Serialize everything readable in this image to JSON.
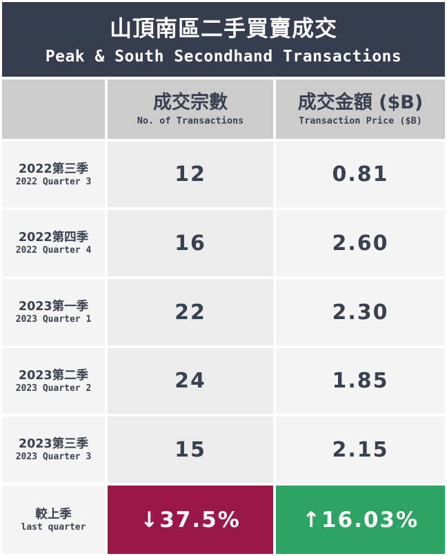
{
  "title": {
    "zh": "山頂南區二手買賣成交",
    "en": "Peak & South Secondhand Transactions"
  },
  "columns": [
    {
      "zh": "成交宗數",
      "en": "No. of Transactions"
    },
    {
      "zh": "成交金額 ($B)",
      "en": "Transaction Price ($B)"
    }
  ],
  "rows": [
    {
      "zh": "2022第三季",
      "en": "2022 Quarter 3",
      "transactions": "12",
      "price": "0.81"
    },
    {
      "zh": "2022第四季",
      "en": "2022 Quarter 4",
      "transactions": "16",
      "price": "2.60"
    },
    {
      "zh": "2023第一季",
      "en": "2023 Quarter 1",
      "transactions": "22",
      "price": "2.30"
    },
    {
      "zh": "2023第二季",
      "en": "2023 Quarter 2",
      "transactions": "24",
      "price": "1.85"
    },
    {
      "zh": "2023第三季",
      "en": "2023 Quarter 3",
      "transactions": "15",
      "price": "2.15"
    }
  ],
  "change": {
    "label_zh": "較上季",
    "label_en": "last quarter",
    "transactions": "↓37.5%",
    "price": "↑16.03%"
  },
  "colors": {
    "header_bg": "#363d4f",
    "decrease": "#9a1848",
    "increase": "#2ea464"
  },
  "chart_data": {
    "type": "table",
    "title": "山頂南區二手買賣成交 / Peak & South Secondhand Transactions",
    "columns": [
      "No. of Transactions",
      "Transaction Price ($B)"
    ],
    "categories": [
      "2022 Quarter 3",
      "2022 Quarter 4",
      "2023 Quarter 1",
      "2023 Quarter 2",
      "2023 Quarter 3"
    ],
    "series": [
      {
        "name": "No. of Transactions",
        "values": [
          12,
          16,
          22,
          24,
          15
        ]
      },
      {
        "name": "Transaction Price ($B)",
        "values": [
          0.81,
          2.6,
          2.3,
          1.85,
          2.15
        ]
      }
    ],
    "change_vs_last_quarter": {
      "transactions_pct": -37.5,
      "price_pct": 16.03
    }
  }
}
